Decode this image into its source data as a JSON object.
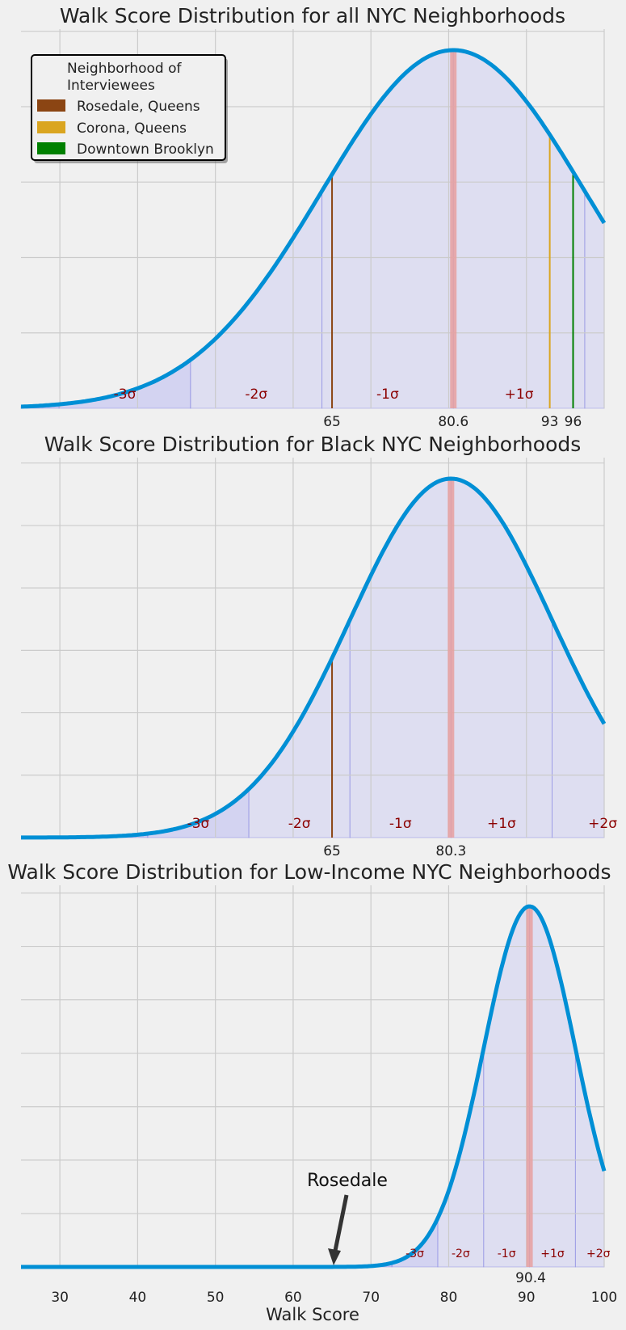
{
  "chart_data": [
    {
      "type": "area",
      "title": "Walk Score Distribution for all NYC Neighborhoods",
      "xlabel": "",
      "ylabel": "",
      "xlim": [
        25,
        100
      ],
      "grid": true,
      "distribution": "normal",
      "mean": 80.6,
      "sd": 16.9,
      "xtick_labels": [
        "65",
        "80.6",
        "93",
        "96"
      ],
      "sigma_bands": [
        "-3σ",
        "-2σ",
        "-1σ",
        "+1σ"
      ],
      "markers": [
        {
          "label": "Rosedale, Queens",
          "value": 65,
          "color": "#8b4513"
        },
        {
          "label": "Corona, Queens",
          "value": 93,
          "color": "#daa520"
        },
        {
          "label": "Downtown Brooklyn",
          "value": 96,
          "color": "#008000"
        }
      ],
      "legend": {
        "title": "Neighborhood of Interviewees",
        "position": "top-left",
        "entries": [
          {
            "label": "Rosedale, Queens",
            "color": "#8b4513"
          },
          {
            "label": "Corona, Queens",
            "color": "#daa520"
          },
          {
            "label": "Downtown Brooklyn",
            "color": "#008000"
          }
        ]
      },
      "colors": {
        "curve": "#008fd5",
        "mean_line": "#e8a0a0",
        "band_label": "#8b0000"
      }
    },
    {
      "type": "area",
      "title": "Walk Score Distribution for Black NYC Neighborhoods",
      "xlabel": "",
      "ylabel": "",
      "xlim": [
        25,
        100
      ],
      "grid": true,
      "distribution": "normal",
      "mean": 80.3,
      "sd": 13.0,
      "xtick_labels": [
        "65",
        "80.3"
      ],
      "sigma_bands": [
        "-3σ",
        "-2σ",
        "-1σ",
        "+1σ",
        "+2σ"
      ],
      "markers": [
        {
          "label": "Rosedale, Queens",
          "value": 65,
          "color": "#8b4513"
        }
      ],
      "colors": {
        "curve": "#008fd5",
        "mean_line": "#e8a0a0",
        "band_label": "#8b0000"
      }
    },
    {
      "type": "area",
      "title": "Walk Score Distribution for Low-Income NYC Neighborhoods",
      "xlabel": "Walk Score",
      "ylabel": "",
      "xlim": [
        25,
        100
      ],
      "grid": true,
      "distribution": "normal",
      "mean": 90.4,
      "sd": 5.9,
      "xtick_labels": [
        "30",
        "40",
        "50",
        "60",
        "70",
        "80",
        "90",
        "100"
      ],
      "mean_label": "90.4",
      "sigma_bands": [
        "-3σ",
        "-2σ",
        "-1σ",
        "+1σ",
        "+2σ"
      ],
      "annotation": {
        "text": "Rosedale",
        "value": 65
      },
      "colors": {
        "curve": "#008fd5",
        "mean_line": "#e8a0a0",
        "band_label": "#8b0000"
      }
    }
  ]
}
